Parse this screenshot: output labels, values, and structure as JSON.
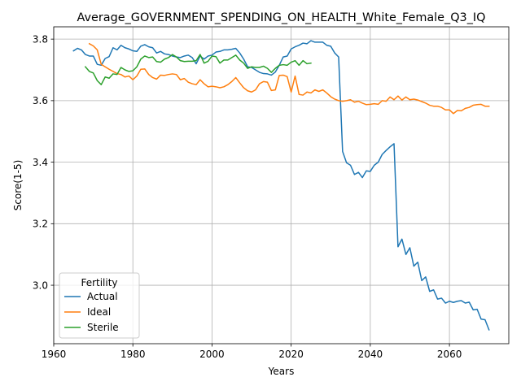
{
  "chart_data": {
    "type": "line",
    "title": "Average_GOVERNMENT_SPENDING_ON_HEALTH_White_Female_Q3_IQ",
    "xlabel": "Years",
    "ylabel": "Score(1-5)",
    "xlim": [
      1960,
      2075
    ],
    "ylim": [
      2.81,
      3.84
    ],
    "xticks": [
      1960,
      1980,
      2000,
      2020,
      2040,
      2060
    ],
    "yticks": [
      3.0,
      3.2,
      3.4,
      3.6,
      3.8
    ],
    "grid": true,
    "legend": {
      "title": "Fertility",
      "placement": "lower-left"
    },
    "series": [
      {
        "name": "Actual",
        "color": "#1f77b4",
        "points": [
          [
            1965,
            3.762
          ],
          [
            1966,
            3.77
          ],
          [
            1967,
            3.765
          ],
          [
            1968,
            3.75
          ],
          [
            1969,
            3.745
          ],
          [
            1970,
            3.745
          ],
          [
            1971,
            3.718
          ],
          [
            1972,
            3.715
          ],
          [
            1973,
            3.737
          ],
          [
            1974,
            3.743
          ],
          [
            1975,
            3.772
          ],
          [
            1976,
            3.765
          ],
          [
            1977,
            3.78
          ],
          [
            1978,
            3.772
          ],
          [
            1979,
            3.768
          ],
          [
            1980,
            3.762
          ],
          [
            1981,
            3.76
          ],
          [
            1982,
            3.777
          ],
          [
            1983,
            3.782
          ],
          [
            1984,
            3.775
          ],
          [
            1985,
            3.772
          ],
          [
            1986,
            3.755
          ],
          [
            1987,
            3.76
          ],
          [
            1988,
            3.752
          ],
          [
            1989,
            3.75
          ],
          [
            1990,
            3.745
          ],
          [
            1991,
            3.742
          ],
          [
            1992,
            3.74
          ],
          [
            1993,
            3.745
          ],
          [
            1994,
            3.748
          ],
          [
            1995,
            3.74
          ],
          [
            1996,
            3.72
          ],
          [
            1997,
            3.745
          ],
          [
            1998,
            3.735
          ],
          [
            1999,
            3.745
          ],
          [
            2000,
            3.748
          ],
          [
            2001,
            3.758
          ],
          [
            2002,
            3.76
          ],
          [
            2003,
            3.765
          ],
          [
            2004,
            3.765
          ],
          [
            2005,
            3.767
          ],
          [
            2006,
            3.77
          ],
          [
            2007,
            3.755
          ],
          [
            2008,
            3.735
          ],
          [
            2009,
            3.71
          ],
          [
            2010,
            3.708
          ],
          [
            2011,
            3.7
          ],
          [
            2012,
            3.692
          ],
          [
            2013,
            3.688
          ],
          [
            2014,
            3.687
          ],
          [
            2015,
            3.683
          ],
          [
            2016,
            3.693
          ],
          [
            2017,
            3.715
          ],
          [
            2018,
            3.742
          ],
          [
            2019,
            3.745
          ],
          [
            2020,
            3.768
          ],
          [
            2021,
            3.775
          ],
          [
            2022,
            3.78
          ],
          [
            2023,
            3.787
          ],
          [
            2024,
            3.785
          ],
          [
            2025,
            3.795
          ],
          [
            2026,
            3.79
          ],
          [
            2027,
            3.79
          ],
          [
            2028,
            3.79
          ],
          [
            2029,
            3.78
          ],
          [
            2030,
            3.777
          ],
          [
            2031,
            3.755
          ],
          [
            2032,
            3.742
          ],
          [
            2033,
            3.435
          ],
          [
            2034,
            3.398
          ],
          [
            2035,
            3.39
          ],
          [
            2036,
            3.36
          ],
          [
            2037,
            3.367
          ],
          [
            2038,
            3.35
          ],
          [
            2039,
            3.372
          ],
          [
            2040,
            3.37
          ],
          [
            2041,
            3.39
          ],
          [
            2042,
            3.4
          ],
          [
            2043,
            3.425
          ],
          [
            2044,
            3.438
          ],
          [
            2045,
            3.45
          ],
          [
            2046,
            3.46
          ],
          [
            2047,
            3.125
          ],
          [
            2048,
            3.15
          ],
          [
            2049,
            3.1
          ],
          [
            2050,
            3.122
          ],
          [
            2051,
            3.062
          ],
          [
            2052,
            3.075
          ],
          [
            2053,
            3.015
          ],
          [
            2054,
            3.027
          ],
          [
            2055,
            2.98
          ],
          [
            2056,
            2.985
          ],
          [
            2057,
            2.955
          ],
          [
            2058,
            2.958
          ],
          [
            2059,
            2.942
          ],
          [
            2060,
            2.948
          ],
          [
            2061,
            2.944
          ],
          [
            2062,
            2.948
          ],
          [
            2063,
            2.95
          ],
          [
            2064,
            2.942
          ],
          [
            2065,
            2.945
          ],
          [
            2066,
            2.92
          ],
          [
            2067,
            2.922
          ],
          [
            2068,
            2.89
          ],
          [
            2069,
            2.888
          ],
          [
            2070,
            2.855
          ]
        ]
      },
      {
        "name": "Ideal",
        "color": "#ff7f0e",
        "points": [
          [
            1969,
            3.785
          ],
          [
            1970,
            3.778
          ],
          [
            1971,
            3.765
          ],
          [
            1972,
            3.718
          ],
          [
            1973,
            3.71
          ],
          [
            1974,
            3.702
          ],
          [
            1975,
            3.695
          ],
          [
            1976,
            3.688
          ],
          [
            1977,
            3.685
          ],
          [
            1978,
            3.677
          ],
          [
            1979,
            3.68
          ],
          [
            1980,
            3.668
          ],
          [
            1981,
            3.68
          ],
          [
            1982,
            3.702
          ],
          [
            1983,
            3.703
          ],
          [
            1984,
            3.685
          ],
          [
            1985,
            3.675
          ],
          [
            1986,
            3.67
          ],
          [
            1987,
            3.683
          ],
          [
            1988,
            3.682
          ],
          [
            1989,
            3.685
          ],
          [
            1990,
            3.687
          ],
          [
            1991,
            3.685
          ],
          [
            1992,
            3.668
          ],
          [
            1993,
            3.672
          ],
          [
            1994,
            3.66
          ],
          [
            1995,
            3.655
          ],
          [
            1996,
            3.652
          ],
          [
            1997,
            3.668
          ],
          [
            1998,
            3.655
          ],
          [
            1999,
            3.645
          ],
          [
            2000,
            3.647
          ],
          [
            2001,
            3.645
          ],
          [
            2002,
            3.642
          ],
          [
            2003,
            3.645
          ],
          [
            2004,
            3.652
          ],
          [
            2005,
            3.662
          ],
          [
            2006,
            3.675
          ],
          [
            2007,
            3.658
          ],
          [
            2008,
            3.642
          ],
          [
            2009,
            3.632
          ],
          [
            2010,
            3.628
          ],
          [
            2011,
            3.635
          ],
          [
            2012,
            3.655
          ],
          [
            2013,
            3.662
          ],
          [
            2014,
            3.66
          ],
          [
            2015,
            3.633
          ],
          [
            2016,
            3.635
          ],
          [
            2017,
            3.682
          ],
          [
            2018,
            3.683
          ],
          [
            2019,
            3.678
          ],
          [
            2020,
            3.628
          ],
          [
            2021,
            3.68
          ],
          [
            2022,
            3.62
          ],
          [
            2023,
            3.618
          ],
          [
            2024,
            3.628
          ],
          [
            2025,
            3.625
          ],
          [
            2026,
            3.635
          ],
          [
            2027,
            3.63
          ],
          [
            2028,
            3.635
          ],
          [
            2029,
            3.625
          ],
          [
            2030,
            3.613
          ],
          [
            2031,
            3.605
          ],
          [
            2032,
            3.6
          ],
          [
            2033,
            3.598
          ],
          [
            2034,
            3.6
          ],
          [
            2035,
            3.603
          ],
          [
            2036,
            3.595
          ],
          [
            2037,
            3.598
          ],
          [
            2038,
            3.592
          ],
          [
            2039,
            3.587
          ],
          [
            2040,
            3.588
          ],
          [
            2041,
            3.59
          ],
          [
            2042,
            3.588
          ],
          [
            2043,
            3.6
          ],
          [
            2044,
            3.598
          ],
          [
            2045,
            3.612
          ],
          [
            2046,
            3.603
          ],
          [
            2047,
            3.615
          ],
          [
            2048,
            3.602
          ],
          [
            2049,
            3.612
          ],
          [
            2050,
            3.603
          ],
          [
            2051,
            3.605
          ],
          [
            2052,
            3.602
          ],
          [
            2053,
            3.597
          ],
          [
            2054,
            3.592
          ],
          [
            2055,
            3.585
          ],
          [
            2056,
            3.582
          ],
          [
            2057,
            3.582
          ],
          [
            2058,
            3.578
          ],
          [
            2059,
            3.57
          ],
          [
            2060,
            3.57
          ],
          [
            2061,
            3.558
          ],
          [
            2062,
            3.568
          ],
          [
            2063,
            3.567
          ],
          [
            2064,
            3.575
          ],
          [
            2065,
            3.578
          ],
          [
            2066,
            3.585
          ],
          [
            2067,
            3.587
          ],
          [
            2068,
            3.588
          ],
          [
            2069,
            3.582
          ],
          [
            2070,
            3.582
          ]
        ]
      },
      {
        "name": "Sterile",
        "color": "#2ca02c",
        "points": [
          [
            1968,
            3.71
          ],
          [
            1969,
            3.695
          ],
          [
            1970,
            3.69
          ],
          [
            1971,
            3.665
          ],
          [
            1972,
            3.652
          ],
          [
            1973,
            3.677
          ],
          [
            1974,
            3.673
          ],
          [
            1975,
            3.687
          ],
          [
            1976,
            3.685
          ],
          [
            1977,
            3.708
          ],
          [
            1978,
            3.7
          ],
          [
            1979,
            3.695
          ],
          [
            1980,
            3.697
          ],
          [
            1981,
            3.71
          ],
          [
            1982,
            3.735
          ],
          [
            1983,
            3.745
          ],
          [
            1984,
            3.74
          ],
          [
            1985,
            3.742
          ],
          [
            1986,
            3.727
          ],
          [
            1987,
            3.725
          ],
          [
            1988,
            3.735
          ],
          [
            1989,
            3.74
          ],
          [
            1990,
            3.75
          ],
          [
            1991,
            3.742
          ],
          [
            1992,
            3.73
          ],
          [
            1993,
            3.727
          ],
          [
            1994,
            3.728
          ],
          [
            1995,
            3.728
          ],
          [
            1996,
            3.73
          ],
          [
            1997,
            3.75
          ],
          [
            1998,
            3.722
          ],
          [
            1999,
            3.728
          ],
          [
            2000,
            3.745
          ],
          [
            2001,
            3.743
          ],
          [
            2002,
            3.722
          ],
          [
            2003,
            3.732
          ],
          [
            2004,
            3.732
          ],
          [
            2005,
            3.74
          ],
          [
            2006,
            3.748
          ],
          [
            2007,
            3.732
          ],
          [
            2008,
            3.722
          ],
          [
            2009,
            3.705
          ],
          [
            2010,
            3.71
          ],
          [
            2011,
            3.708
          ],
          [
            2012,
            3.708
          ],
          [
            2013,
            3.712
          ],
          [
            2014,
            3.705
          ],
          [
            2015,
            3.692
          ],
          [
            2016,
            3.705
          ],
          [
            2017,
            3.715
          ],
          [
            2018,
            3.717
          ],
          [
            2019,
            3.715
          ],
          [
            2020,
            3.725
          ],
          [
            2021,
            3.73
          ],
          [
            2022,
            3.715
          ],
          [
            2023,
            3.73
          ],
          [
            2024,
            3.72
          ],
          [
            2025,
            3.722
          ]
        ]
      }
    ]
  }
}
